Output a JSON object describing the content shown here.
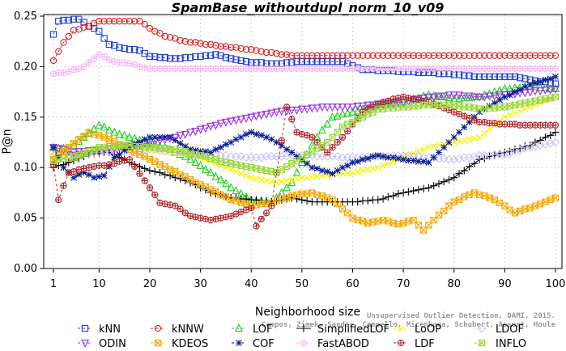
{
  "chart_data": {
    "type": "line",
    "title": "SpamBase_withoutdupl_norm_10_v09",
    "xlabel": "Neighborhood size",
    "ylabel": "P@n",
    "xlim": [
      1,
      100
    ],
    "ylim": [
      0,
      0.25
    ],
    "xticks": [
      1,
      10,
      20,
      30,
      40,
      50,
      60,
      70,
      80,
      90,
      100
    ],
    "yticks": [
      "0.00",
      "0.05",
      "0.10",
      "0.15",
      "0.20",
      "0.25"
    ],
    "credit": [
      "Campos, Zimek, Sander, Campello, Micenkova, Schubert, Assent, Houle",
      "Unsupervised Outlier Detection, DAMI, 2015."
    ],
    "legend_placement": "bottom",
    "series": [
      {
        "name": "kNN",
        "color": "#1f3fd8",
        "marker": "square",
        "dash": "3,3",
        "knots": [
          [
            1,
            0.232
          ],
          [
            2,
            0.245
          ],
          [
            6,
            0.247
          ],
          [
            8,
            0.24
          ],
          [
            10,
            0.235
          ],
          [
            12,
            0.222
          ],
          [
            15,
            0.218
          ],
          [
            18,
            0.216
          ],
          [
            20,
            0.21
          ],
          [
            25,
            0.208
          ],
          [
            30,
            0.21
          ],
          [
            33,
            0.212
          ],
          [
            36,
            0.208
          ],
          [
            40,
            0.204
          ],
          [
            45,
            0.203
          ],
          [
            50,
            0.205
          ],
          [
            58,
            0.205
          ],
          [
            62,
            0.197
          ],
          [
            70,
            0.195
          ],
          [
            78,
            0.193
          ],
          [
            85,
            0.19
          ],
          [
            92,
            0.19
          ],
          [
            96,
            0.186
          ],
          [
            100,
            0.183
          ]
        ]
      },
      {
        "name": "kNNW",
        "color": "#e01b1b",
        "marker": "circle",
        "dash": "3,3",
        "knots": [
          [
            1,
            0.206
          ],
          [
            3,
            0.224
          ],
          [
            5,
            0.236
          ],
          [
            8,
            0.24
          ],
          [
            10,
            0.245
          ],
          [
            15,
            0.245
          ],
          [
            18,
            0.245
          ],
          [
            20,
            0.238
          ],
          [
            23,
            0.23
          ],
          [
            27,
            0.225
          ],
          [
            33,
            0.221
          ],
          [
            38,
            0.218
          ],
          [
            42,
            0.215
          ],
          [
            48,
            0.211
          ],
          [
            55,
            0.211
          ],
          [
            100,
            0.211
          ]
        ]
      },
      {
        "name": "LOF",
        "color": "#1ad11a",
        "marker": "triangle",
        "dash": "3,3",
        "knots": [
          [
            1,
            0.12
          ],
          [
            4,
            0.118
          ],
          [
            7,
            0.13
          ],
          [
            10,
            0.142
          ],
          [
            13,
            0.135
          ],
          [
            16,
            0.13
          ],
          [
            20,
            0.124
          ],
          [
            24,
            0.118
          ],
          [
            28,
            0.108
          ],
          [
            32,
            0.095
          ],
          [
            36,
            0.08
          ],
          [
            40,
            0.068
          ],
          [
            44,
            0.065
          ],
          [
            48,
            0.085
          ],
          [
            50,
            0.105
          ],
          [
            53,
            0.13
          ],
          [
            56,
            0.15
          ],
          [
            60,
            0.155
          ],
          [
            65,
            0.162
          ],
          [
            70,
            0.165
          ],
          [
            75,
            0.172
          ],
          [
            80,
            0.168
          ],
          [
            85,
            0.17
          ],
          [
            90,
            0.178
          ],
          [
            95,
            0.18
          ],
          [
            100,
            0.178
          ]
        ]
      },
      {
        "name": "SimplifiedLOF",
        "color": "#000000",
        "marker": "plus",
        "dash": "",
        "knots": [
          [
            1,
            0.1
          ],
          [
            4,
            0.105
          ],
          [
            8,
            0.113
          ],
          [
            12,
            0.115
          ],
          [
            16,
            0.105
          ],
          [
            20,
            0.097
          ],
          [
            24,
            0.092
          ],
          [
            28,
            0.085
          ],
          [
            32,
            0.075
          ],
          [
            36,
            0.07
          ],
          [
            40,
            0.068
          ],
          [
            44,
            0.066
          ],
          [
            48,
            0.07
          ],
          [
            52,
            0.066
          ],
          [
            60,
            0.066
          ],
          [
            65,
            0.068
          ],
          [
            70,
            0.075
          ],
          [
            75,
            0.08
          ],
          [
            80,
            0.09
          ],
          [
            85,
            0.108
          ],
          [
            90,
            0.115
          ],
          [
            95,
            0.122
          ],
          [
            100,
            0.135
          ]
        ]
      },
      {
        "name": "LoOP",
        "color": "#f2f200",
        "marker": "x",
        "dash": "3,3",
        "knots": [
          [
            1,
            0.112
          ],
          [
            5,
            0.113
          ],
          [
            10,
            0.118
          ],
          [
            15,
            0.12
          ],
          [
            20,
            0.118
          ],
          [
            25,
            0.115
          ],
          [
            30,
            0.11
          ],
          [
            35,
            0.1
          ],
          [
            40,
            0.09
          ],
          [
            45,
            0.085
          ],
          [
            50,
            0.09
          ],
          [
            55,
            0.092
          ],
          [
            60,
            0.095
          ],
          [
            65,
            0.1
          ],
          [
            70,
            0.11
          ],
          [
            75,
            0.12
          ],
          [
            80,
            0.125
          ],
          [
            85,
            0.13
          ],
          [
            90,
            0.15
          ],
          [
            95,
            0.16
          ],
          [
            100,
            0.17
          ]
        ]
      },
      {
        "name": "LDOF",
        "color": "#c6c6f7",
        "marker": "diamond",
        "dash": "3,3",
        "knots": [
          [
            1,
            0.112
          ],
          [
            10,
            0.115
          ],
          [
            20,
            0.118
          ],
          [
            30,
            0.113
          ],
          [
            40,
            0.11
          ],
          [
            50,
            0.112
          ],
          [
            60,
            0.11
          ],
          [
            70,
            0.112
          ],
          [
            80,
            0.108
          ],
          [
            85,
            0.112
          ],
          [
            90,
            0.113
          ],
          [
            95,
            0.12
          ],
          [
            100,
            0.125
          ]
        ]
      },
      {
        "name": "ODIN",
        "color": "#9b30e8",
        "marker": "triangle-down",
        "dash": "3,3",
        "knots": [
          [
            1,
            0.12
          ],
          [
            5,
            0.115
          ],
          [
            10,
            0.118
          ],
          [
            15,
            0.12
          ],
          [
            20,
            0.125
          ],
          [
            25,
            0.13
          ],
          [
            30,
            0.138
          ],
          [
            35,
            0.145
          ],
          [
            40,
            0.15
          ],
          [
            45,
            0.155
          ],
          [
            50,
            0.158
          ],
          [
            55,
            0.16
          ],
          [
            60,
            0.16
          ],
          [
            65,
            0.163
          ],
          [
            70,
            0.165
          ],
          [
            75,
            0.17
          ],
          [
            80,
            0.172
          ],
          [
            85,
            0.17
          ],
          [
            90,
            0.172
          ],
          [
            95,
            0.175
          ],
          [
            100,
            0.178
          ]
        ]
      },
      {
        "name": "KDEOS",
        "color": "#f5a800",
        "marker": "box-x",
        "dash": "3,3",
        "knots": [
          [
            1,
            0.108
          ],
          [
            4,
            0.12
          ],
          [
            8,
            0.135
          ],
          [
            12,
            0.128
          ],
          [
            16,
            0.118
          ],
          [
            20,
            0.108
          ],
          [
            24,
            0.098
          ],
          [
            28,
            0.088
          ],
          [
            32,
            0.078
          ],
          [
            36,
            0.068
          ],
          [
            40,
            0.062
          ],
          [
            44,
            0.065
          ],
          [
            48,
            0.072
          ],
          [
            52,
            0.075
          ],
          [
            56,
            0.068
          ],
          [
            60,
            0.05
          ],
          [
            63,
            0.045
          ],
          [
            66,
            0.048
          ],
          [
            69,
            0.044
          ],
          [
            72,
            0.048
          ],
          [
            74,
            0.038
          ],
          [
            76,
            0.048
          ],
          [
            80,
            0.066
          ],
          [
            84,
            0.075
          ],
          [
            88,
            0.068
          ],
          [
            92,
            0.055
          ],
          [
            96,
            0.062
          ],
          [
            100,
            0.07
          ]
        ]
      },
      {
        "name": "COF",
        "color": "#0b1f8f",
        "marker": "asterisk",
        "dash": "3,3",
        "knots": [
          [
            1,
            0.12
          ],
          [
            3,
            0.1
          ],
          [
            5,
            0.09
          ],
          [
            7,
            0.095
          ],
          [
            9,
            0.09
          ],
          [
            11,
            0.092
          ],
          [
            13,
            0.11
          ],
          [
            16,
            0.12
          ],
          [
            20,
            0.13
          ],
          [
            24,
            0.13
          ],
          [
            28,
            0.118
          ],
          [
            32,
            0.115
          ],
          [
            36,
            0.125
          ],
          [
            40,
            0.135
          ],
          [
            44,
            0.128
          ],
          [
            48,
            0.115
          ],
          [
            52,
            0.1
          ],
          [
            56,
            0.094
          ],
          [
            60,
            0.105
          ],
          [
            65,
            0.112
          ],
          [
            70,
            0.108
          ],
          [
            75,
            0.105
          ],
          [
            80,
            0.13
          ],
          [
            85,
            0.155
          ],
          [
            90,
            0.17
          ],
          [
            95,
            0.182
          ],
          [
            100,
            0.19
          ]
        ]
      },
      {
        "name": "FastABOD",
        "color": "#f5b8f5",
        "marker": "circle-plus",
        "dash": "3,3",
        "knots": [
          [
            1,
            0.193
          ],
          [
            4,
            0.195
          ],
          [
            7,
            0.2
          ],
          [
            10,
            0.212
          ],
          [
            13,
            0.205
          ],
          [
            16,
            0.203
          ],
          [
            18,
            0.2
          ],
          [
            20,
            0.198
          ],
          [
            100,
            0.198
          ]
        ]
      },
      {
        "name": "LDF",
        "color": "#b0262a",
        "marker": "circle-plus",
        "dash": "3,3",
        "knots": [
          [
            1,
            0.103
          ],
          [
            2,
            0.068
          ],
          [
            4,
            0.095
          ],
          [
            8,
            0.1
          ],
          [
            12,
            0.103
          ],
          [
            16,
            0.108
          ],
          [
            20,
            0.08
          ],
          [
            22,
            0.065
          ],
          [
            25,
            0.062
          ],
          [
            28,
            0.052
          ],
          [
            32,
            0.048
          ],
          [
            36,
            0.052
          ],
          [
            40,
            0.06
          ],
          [
            41,
            0.042
          ],
          [
            44,
            0.062
          ],
          [
            47,
            0.16
          ],
          [
            49,
            0.135
          ],
          [
            52,
            0.13
          ],
          [
            55,
            0.115
          ],
          [
            58,
            0.13
          ],
          [
            62,
            0.155
          ],
          [
            66,
            0.165
          ],
          [
            70,
            0.17
          ],
          [
            75,
            0.165
          ],
          [
            80,
            0.155
          ],
          [
            85,
            0.145
          ],
          [
            90,
            0.143
          ],
          [
            95,
            0.142
          ],
          [
            100,
            0.142
          ]
        ]
      },
      {
        "name": "INFLO",
        "color": "#9ad63a",
        "marker": "box-x",
        "dash": "3,3",
        "knots": [
          [
            1,
            0.107
          ],
          [
            5,
            0.11
          ],
          [
            10,
            0.12
          ],
          [
            15,
            0.122
          ],
          [
            20,
            0.12
          ],
          [
            25,
            0.118
          ],
          [
            30,
            0.112
          ],
          [
            35,
            0.105
          ],
          [
            40,
            0.1
          ],
          [
            45,
            0.095
          ],
          [
            50,
            0.11
          ],
          [
            55,
            0.125
          ],
          [
            58,
            0.14
          ],
          [
            62,
            0.15
          ],
          [
            65,
            0.158
          ],
          [
            70,
            0.16
          ],
          [
            75,
            0.162
          ],
          [
            80,
            0.162
          ],
          [
            85,
            0.158
          ],
          [
            90,
            0.16
          ],
          [
            95,
            0.165
          ],
          [
            100,
            0.17
          ]
        ]
      }
    ]
  }
}
